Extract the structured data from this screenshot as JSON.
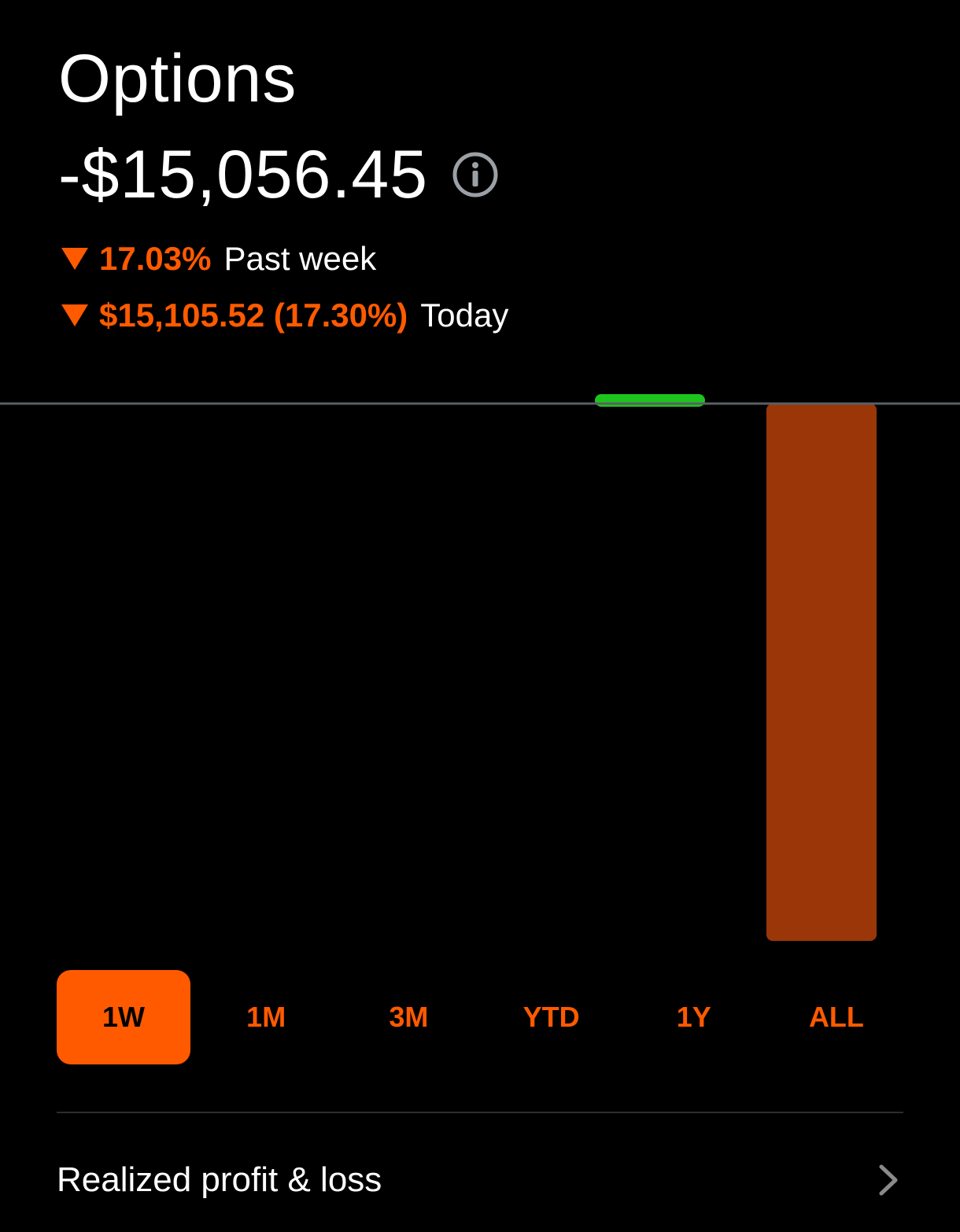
{
  "header": {
    "title": "Options",
    "value": "-$15,056.45",
    "info_icon": "info-circle-icon"
  },
  "changes": {
    "week": {
      "value": "17.03%",
      "label": "Past week",
      "direction": "down"
    },
    "today": {
      "value": "$15,105.52 (17.30%)",
      "label": "Today",
      "direction": "down"
    }
  },
  "colors": {
    "accent": "#ff5a00",
    "negative_bar": "#9a3608",
    "positive_bar": "#1ec41e",
    "baseline": "#5a5e66",
    "background": "#000000",
    "text": "#ffffff"
  },
  "chart_data": {
    "type": "bar",
    "categories": [
      "",
      "",
      "",
      "",
      ""
    ],
    "values": [
      0,
      0,
      0,
      150,
      -15105.52
    ],
    "title": "",
    "xlabel": "",
    "ylabel": "",
    "ylim": [
      -15105.52,
      150
    ],
    "grid": false
  },
  "range_selector": {
    "selected": "1W",
    "options": [
      "1W",
      "1M",
      "3M",
      "YTD",
      "1Y",
      "ALL"
    ]
  },
  "realized": {
    "label": "Realized profit & loss",
    "chevron_icon": "chevron-right-icon"
  }
}
